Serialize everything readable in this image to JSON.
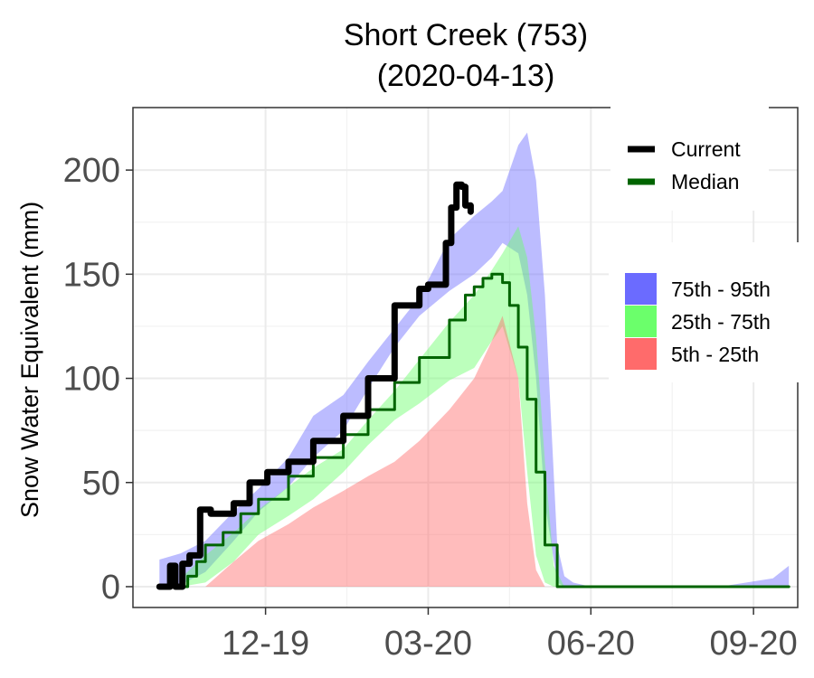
{
  "chart_data": {
    "type": "area",
    "title": "Short Creek (753)",
    "subtitle": "(2020-04-13)",
    "xlabel": "",
    "ylabel": "Snow Water Equivalent (mm)",
    "ylim": [
      -10,
      230
    ],
    "xlim": [
      "2019-10-05",
      "2020-10-15"
    ],
    "yticks": [
      0,
      50,
      100,
      150,
      200
    ],
    "xticks": [
      {
        "date": "2019-12-19",
        "label": "12-19"
      },
      {
        "date": "2020-03-20",
        "label": "03-20"
      },
      {
        "date": "2020-06-20",
        "label": "06-20"
      },
      {
        "date": "2020-09-20",
        "label": "09-20"
      }
    ],
    "grid": true,
    "legend_placement": "right",
    "bands": [
      {
        "name": "75th - 95th",
        "color": "#6b6bff",
        "x": [
          "2019-10-20",
          "2019-11-01",
          "2019-11-15",
          "2019-12-01",
          "2019-12-15",
          "2020-01-01",
          "2020-01-15",
          "2020-02-01",
          "2020-02-15",
          "2020-03-01",
          "2020-03-15",
          "2020-04-01",
          "2020-04-15",
          "2020-04-25",
          "2020-05-01",
          "2020-05-10",
          "2020-05-15",
          "2020-05-20",
          "2020-05-25",
          "2020-06-01",
          "2020-06-05",
          "2020-06-10",
          "2020-06-20",
          "2020-09-01",
          "2020-10-01",
          "2020-10-10"
        ],
        "lower": [
          0,
          1,
          7,
          22,
          36,
          48,
          62,
          75,
          95,
          115,
          130,
          142,
          150,
          158,
          165,
          160,
          140,
          100,
          40,
          2,
          0,
          0,
          0,
          0,
          0,
          0
        ],
        "upper": [
          13,
          16,
          22,
          36,
          47,
          62,
          82,
          92,
          108,
          124,
          139,
          167,
          178,
          185,
          190,
          212,
          218,
          195,
          140,
          20,
          5,
          2,
          0,
          0,
          4,
          10
        ]
      },
      {
        "name": "25th - 75th",
        "color": "#6bff6b",
        "x": [
          "2019-11-01",
          "2019-11-15",
          "2019-12-01",
          "2019-12-15",
          "2020-01-01",
          "2020-01-15",
          "2020-02-01",
          "2020-02-15",
          "2020-03-01",
          "2020-03-15",
          "2020-04-01",
          "2020-04-15",
          "2020-04-25",
          "2020-05-01",
          "2020-05-10",
          "2020-05-15",
          "2020-05-20",
          "2020-05-25",
          "2020-05-30",
          "2020-06-05"
        ],
        "lower": [
          0,
          2,
          12,
          25,
          34,
          42,
          55,
          68,
          80,
          88,
          99,
          105,
          118,
          125,
          100,
          55,
          15,
          2,
          0,
          0
        ],
        "upper": [
          4,
          15,
          26,
          37,
          48,
          57,
          66,
          80,
          94,
          109,
          127,
          140,
          152,
          160,
          173,
          158,
          120,
          60,
          10,
          0
        ]
      },
      {
        "name": "5th - 25th",
        "color": "#ff6b6b",
        "x": [
          "2019-11-15",
          "2019-12-01",
          "2019-12-15",
          "2020-01-01",
          "2020-01-15",
          "2020-02-01",
          "2020-02-15",
          "2020-03-01",
          "2020-03-15",
          "2020-04-01",
          "2020-04-15",
          "2020-04-25",
          "2020-05-01",
          "2020-05-10",
          "2020-05-15",
          "2020-05-20",
          "2020-05-25"
        ],
        "lower": [
          0,
          0,
          0,
          0,
          0,
          0,
          0,
          0,
          0,
          0,
          0,
          0,
          0,
          0,
          0,
          0,
          0
        ],
        "upper": [
          0,
          12,
          22,
          30,
          38,
          46,
          53,
          60,
          70,
          85,
          100,
          118,
          130,
          100,
          40,
          8,
          0
        ]
      }
    ],
    "series": [
      {
        "name": "Median",
        "color": "#006400",
        "x": [
          "2019-10-20",
          "2019-11-01",
          "2019-11-05",
          "2019-11-10",
          "2019-11-15",
          "2019-11-25",
          "2019-12-05",
          "2019-12-15",
          "2020-01-01",
          "2020-01-15",
          "2020-02-01",
          "2020-02-15",
          "2020-03-01",
          "2020-03-15",
          "2020-04-01",
          "2020-04-10",
          "2020-04-15",
          "2020-04-20",
          "2020-04-25",
          "2020-05-01",
          "2020-05-05",
          "2020-05-10",
          "2020-05-15",
          "2020-05-20",
          "2020-05-25",
          "2020-06-01",
          "2020-06-15",
          "2020-08-01",
          "2020-10-10"
        ],
        "values": [
          0,
          0,
          5,
          12,
          20,
          26,
          35,
          42,
          53,
          62,
          73,
          85,
          98,
          110,
          128,
          140,
          144,
          148,
          150,
          146,
          135,
          115,
          90,
          55,
          20,
          0,
          0,
          0,
          0
        ]
      },
      {
        "name": "Current",
        "color": "#000000",
        "x": [
          "2019-10-20",
          "2019-10-26",
          "2019-10-29",
          "2019-11-02",
          "2019-11-06",
          "2019-11-12",
          "2019-11-18",
          "2019-11-24",
          "2019-12-01",
          "2019-12-10",
          "2019-12-20",
          "2020-01-01",
          "2020-01-15",
          "2020-02-01",
          "2020-02-15",
          "2020-03-01",
          "2020-03-15",
          "2020-03-20",
          "2020-03-30",
          "2020-04-02",
          "2020-04-05",
          "2020-04-08",
          "2020-04-10",
          "2020-04-13"
        ],
        "values": [
          0,
          10,
          0,
          11,
          15,
          37,
          35,
          35,
          40,
          50,
          55,
          60,
          70,
          82,
          100,
          135,
          143,
          145,
          165,
          182,
          193,
          192,
          183,
          180
        ]
      }
    ],
    "legend": {
      "lines": [
        {
          "label": "Current",
          "color": "#000000"
        },
        {
          "label": "Median",
          "color": "#006400"
        }
      ],
      "fills": [
        {
          "label": "75th - 95th",
          "color": "#6b6bff"
        },
        {
          "label": "25th - 75th",
          "color": "#6bff6b"
        },
        {
          "label": "5th - 25th",
          "color": "#ff6b6b"
        }
      ]
    }
  }
}
